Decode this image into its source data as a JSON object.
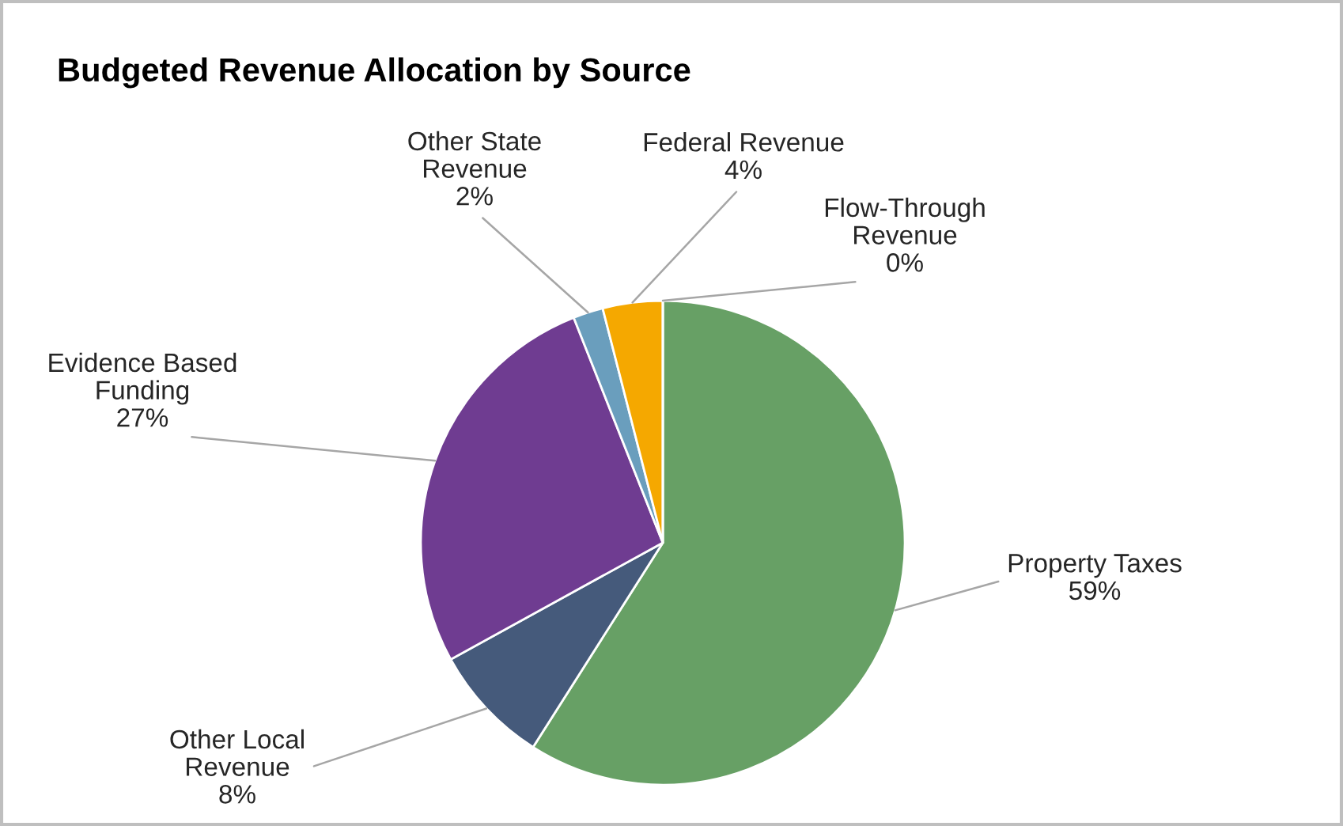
{
  "chart_data": {
    "type": "pie",
    "title": "Budgeted Revenue Allocation by Source",
    "categories": [
      "Property Taxes",
      "Other Local\nRevenue",
      "Evidence Based\nFunding",
      "Other State\nRevenue",
      "Federal Revenue",
      "Flow-Through\nRevenue"
    ],
    "values": [
      59,
      8,
      27,
      2,
      4,
      0
    ],
    "colors": [
      "#67a065",
      "#455a7b",
      "#6f3c91",
      "#6a9ebd",
      "#f5a800",
      "#c0c0c0"
    ],
    "value_labels": [
      "59%",
      "8%",
      "27%",
      "2%",
      "4%",
      "0%"
    ],
    "legend": false
  }
}
